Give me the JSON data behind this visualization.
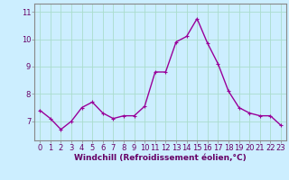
{
  "x": [
    0,
    1,
    2,
    3,
    4,
    5,
    6,
    7,
    8,
    9,
    10,
    11,
    12,
    13,
    14,
    15,
    16,
    17,
    18,
    19,
    20,
    21,
    22,
    23
  ],
  "y": [
    7.4,
    7.1,
    6.7,
    7.0,
    7.5,
    7.7,
    7.3,
    7.1,
    7.2,
    7.2,
    7.55,
    8.8,
    8.8,
    9.9,
    10.1,
    10.75,
    9.85,
    9.1,
    8.1,
    7.5,
    7.3,
    7.2,
    7.2,
    6.85
  ],
  "line_color": "#990099",
  "marker_color": "#990099",
  "bg_color": "#cceeff",
  "grid_color": "#aaddcc",
  "xlabel": "Windchill (Refroidissement éolien,°C)",
  "xlabel_color": "#660066",
  "tick_color": "#660066",
  "axis_color": "#888888",
  "ylim": [
    6.3,
    11.3
  ],
  "yticks": [
    7,
    8,
    9,
    10,
    11
  ],
  "xticks": [
    0,
    1,
    2,
    3,
    4,
    5,
    6,
    7,
    8,
    9,
    10,
    11,
    12,
    13,
    14,
    15,
    16,
    17,
    18,
    19,
    20,
    21,
    22,
    23
  ],
  "line_width": 1.0,
  "marker_size": 3.5,
  "tick_fontsize": 6.0,
  "xlabel_fontsize": 6.5
}
